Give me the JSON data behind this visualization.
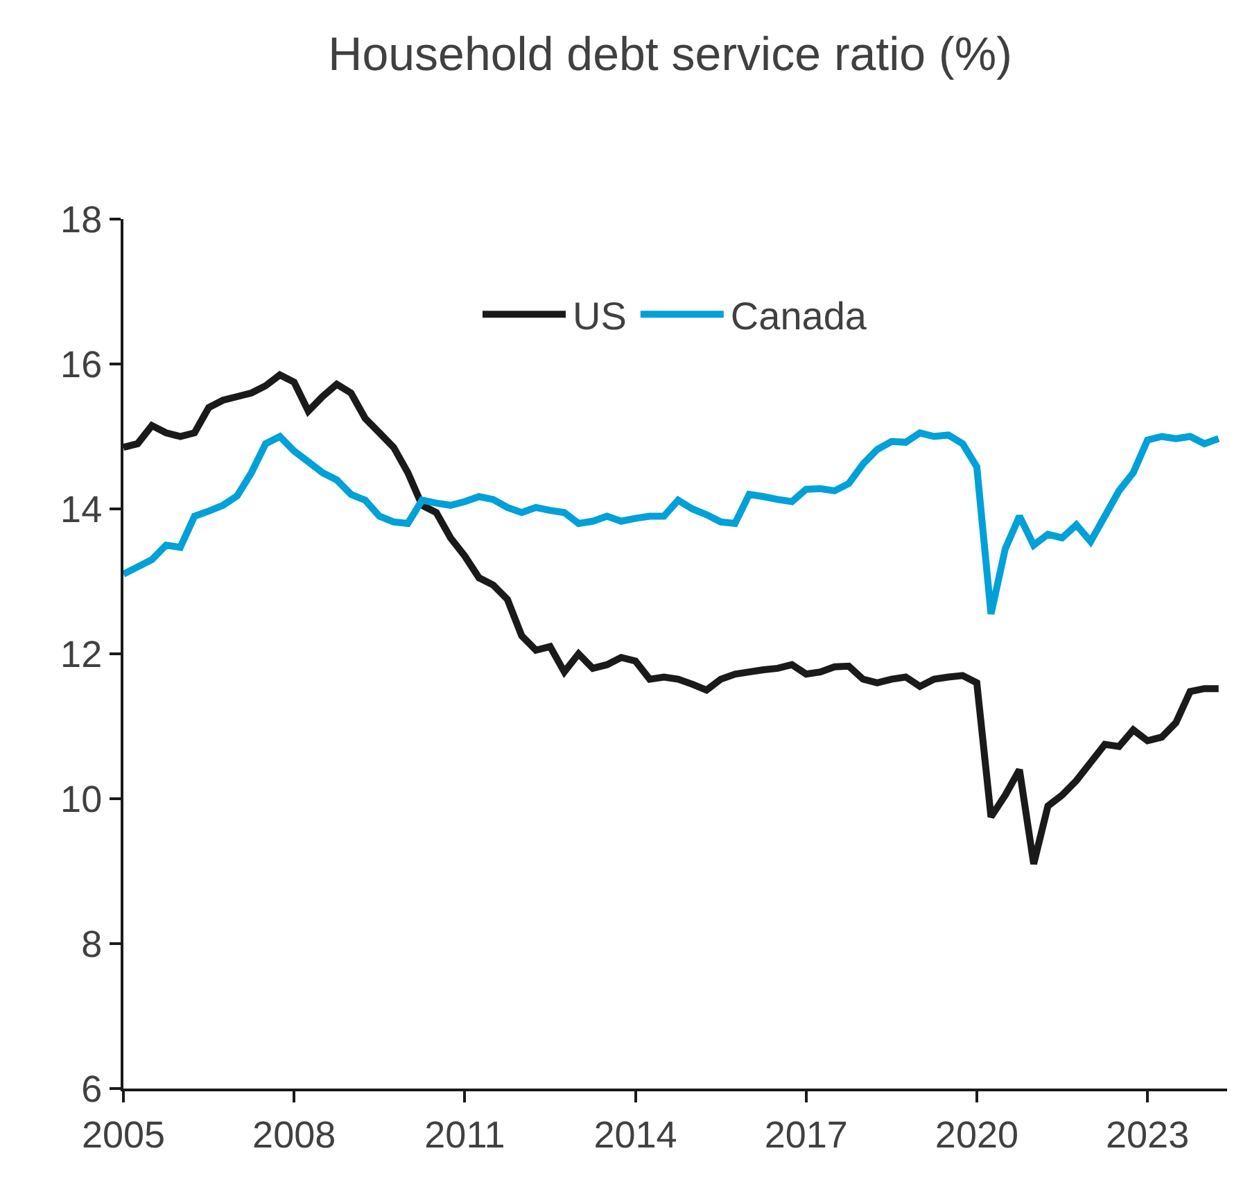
{
  "chart_data": {
    "type": "line",
    "title": "Household debt service ratio (%)",
    "x": [
      2005.0,
      2005.25,
      2005.5,
      2005.75,
      2006.0,
      2006.25,
      2006.5,
      2006.75,
      2007.0,
      2007.25,
      2007.5,
      2007.75,
      2008.0,
      2008.25,
      2008.5,
      2008.75,
      2009.0,
      2009.25,
      2009.5,
      2009.75,
      2010.0,
      2010.25,
      2010.5,
      2010.75,
      2011.0,
      2011.25,
      2011.5,
      2011.75,
      2012.0,
      2012.25,
      2012.5,
      2012.75,
      2013.0,
      2013.25,
      2013.5,
      2013.75,
      2014.0,
      2014.25,
      2014.5,
      2014.75,
      2015.0,
      2015.25,
      2015.5,
      2015.75,
      2016.0,
      2016.25,
      2016.5,
      2016.75,
      2017.0,
      2017.25,
      2017.5,
      2017.75,
      2018.0,
      2018.25,
      2018.5,
      2018.75,
      2019.0,
      2019.25,
      2019.5,
      2019.75,
      2020.0,
      2020.25,
      2020.5,
      2020.75,
      2021.0,
      2021.25,
      2021.5,
      2021.75,
      2022.0,
      2022.25,
      2022.5,
      2022.75,
      2023.0,
      2023.25,
      2023.5,
      2023.75,
      2024.0,
      2024.25
    ],
    "series": [
      {
        "name": "US",
        "color": "#1a1a1a",
        "values": [
          14.85,
          14.9,
          15.15,
          15.05,
          15.0,
          15.05,
          15.4,
          15.5,
          15.55,
          15.6,
          15.7,
          15.85,
          15.75,
          15.35,
          15.55,
          15.72,
          15.6,
          15.25,
          15.05,
          14.85,
          14.5,
          14.05,
          13.95,
          13.6,
          13.35,
          13.05,
          12.95,
          12.75,
          12.25,
          12.05,
          12.1,
          11.75,
          12.0,
          11.8,
          11.85,
          11.95,
          11.9,
          11.65,
          11.68,
          11.65,
          11.58,
          11.5,
          11.65,
          11.72,
          11.75,
          11.78,
          11.8,
          11.85,
          11.72,
          11.75,
          11.82,
          11.83,
          11.65,
          11.6,
          11.65,
          11.68,
          11.55,
          11.65,
          11.68,
          11.7,
          11.6,
          9.75,
          10.05,
          10.4,
          9.1,
          9.9,
          10.05,
          10.25,
          10.5,
          10.75,
          10.72,
          10.95,
          10.8,
          10.85,
          11.05,
          11.48,
          11.52,
          11.52
        ]
      },
      {
        "name": "Canada",
        "color": "#00a0d8",
        "values": [
          13.1,
          13.2,
          13.3,
          13.5,
          13.47,
          13.9,
          13.97,
          14.05,
          14.18,
          14.5,
          14.9,
          15.0,
          14.8,
          14.65,
          14.5,
          14.4,
          14.2,
          14.12,
          13.9,
          13.82,
          13.8,
          14.12,
          14.08,
          14.05,
          14.1,
          14.17,
          14.13,
          14.02,
          13.95,
          14.02,
          13.98,
          13.95,
          13.8,
          13.83,
          13.9,
          13.83,
          13.87,
          13.9,
          13.9,
          14.12,
          14.0,
          13.92,
          13.82,
          13.8,
          14.2,
          14.17,
          14.13,
          14.1,
          14.27,
          14.28,
          14.25,
          14.35,
          14.62,
          14.82,
          14.93,
          14.92,
          15.05,
          15.0,
          15.02,
          14.9,
          14.58,
          12.55,
          13.45,
          13.9,
          13.5,
          13.65,
          13.6,
          13.78,
          13.55,
          13.9,
          14.25,
          14.5,
          14.95,
          15.0,
          14.97,
          15.0,
          14.9,
          14.97
        ]
      }
    ],
    "xlim": [
      2005,
      2024.4
    ],
    "xticks": [
      2005,
      2008,
      2011,
      2014,
      2017,
      2020,
      2023
    ],
    "ylim": [
      6,
      18
    ],
    "yticks": [
      6,
      8,
      10,
      12,
      14,
      16,
      18
    ],
    "legend": "top",
    "marker": "none",
    "line_style": "solid"
  }
}
